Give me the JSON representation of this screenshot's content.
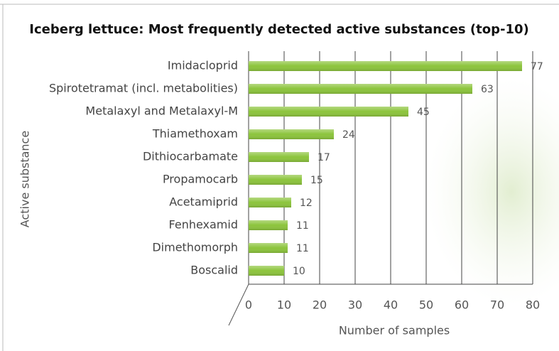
{
  "chart_data": {
    "type": "barh",
    "title": "Iceberg lettuce: Most frequently detected active substances (top-10)",
    "x_label": "Number of samples",
    "y_label": "Active substance",
    "categories": [
      "Imidacloprid",
      "Spirotetramat (incl. metabolities)",
      "Metalaxyl and Metalaxyl-M",
      "Thiamethoxam",
      "Dithiocarbamate",
      "Propamocarb",
      "Acetamiprid",
      "Fenhexamid",
      "Dimethomorph",
      "Boscalid"
    ],
    "values": [
      77,
      63,
      45,
      24,
      17,
      15,
      12,
      11,
      11,
      10
    ],
    "color": "#8cc43c",
    "xlim": [
      0,
      80
    ],
    "xticks": [
      0,
      10,
      20,
      30,
      40,
      50,
      60,
      70,
      80
    ],
    "grid": true
  }
}
